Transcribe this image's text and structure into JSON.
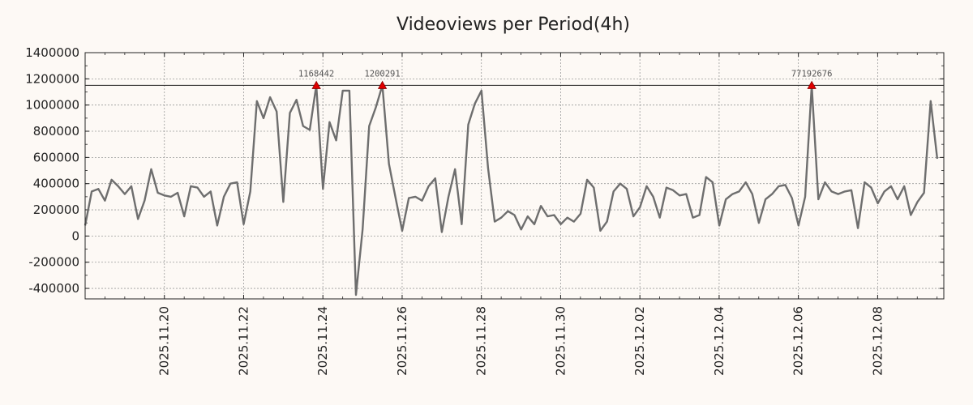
{
  "chart_data": {
    "type": "line",
    "title": "Videoviews per Period(4h)",
    "xlabel": "",
    "ylabel": "",
    "ylim": [
      -480000,
      1400000
    ],
    "xlim_days": [
      0,
      21.67
    ],
    "x_origin_date": "2025.11.18",
    "y_ticks": [
      -400000,
      -200000,
      0,
      200000,
      400000,
      600000,
      800000,
      1000000,
      1200000,
      1400000
    ],
    "y_tick_labels": [
      "-400000",
      "-200000",
      "0",
      "200000",
      "400000",
      "600000",
      "800000",
      "1000000",
      "1200000",
      "1400000"
    ],
    "x_ticks_days": [
      2,
      4,
      6,
      8,
      10,
      12,
      14,
      16,
      18,
      20
    ],
    "x_tick_labels": [
      "2025.11.20",
      "2025.11.22",
      "2025.11.24",
      "2025.11.26",
      "2025.11.28",
      "2025.11.30",
      "2025.12.02",
      "2025.12.04",
      "2025.12.06",
      "2025.12.08"
    ],
    "grid": true,
    "threshold": 1150000,
    "line_color": "#6e6e6e",
    "marker_color": "#e00000",
    "series": [
      {
        "name": "Videoviews",
        "period_days": 0.1667,
        "values": [
          80000,
          340000,
          360000,
          270000,
          430000,
          380000,
          320000,
          380000,
          130000,
          270000,
          510000,
          330000,
          310000,
          300000,
          330000,
          150000,
          380000,
          370000,
          300000,
          340000,
          80000,
          300000,
          400000,
          410000,
          90000,
          340000,
          1030000,
          900000,
          1060000,
          950000,
          260000,
          940000,
          1040000,
          840000,
          810000,
          1150000,
          360000,
          870000,
          730000,
          1110000,
          1110000,
          -450000,
          50000,
          840000,
          980000,
          1150000,
          550000,
          290000,
          40000,
          290000,
          300000,
          270000,
          380000,
          440000,
          30000,
          300000,
          510000,
          90000,
          850000,
          1010000,
          1110000,
          520000,
          110000,
          140000,
          190000,
          160000,
          50000,
          150000,
          90000,
          230000,
          150000,
          160000,
          90000,
          140000,
          110000,
          170000,
          430000,
          370000,
          40000,
          110000,
          340000,
          400000,
          360000,
          150000,
          220000,
          380000,
          300000,
          140000,
          370000,
          350000,
          310000,
          320000,
          140000,
          160000,
          450000,
          410000,
          80000,
          280000,
          320000,
          340000,
          410000,
          320000,
          100000,
          280000,
          320000,
          380000,
          390000,
          290000,
          80000,
          300000,
          1150000,
          280000,
          410000,
          340000,
          320000,
          340000,
          350000,
          60000,
          410000,
          370000,
          250000,
          340000,
          380000,
          280000,
          380000,
          160000,
          260000,
          330000,
          1030000,
          590000
        ]
      }
    ],
    "annotations": [
      {
        "index": 35,
        "value": 1150000,
        "label": "1168442"
      },
      {
        "index": 45,
        "value": 1150000,
        "label": "1200291"
      },
      {
        "index": 110,
        "value": 1150000,
        "label": "77192676"
      }
    ]
  }
}
